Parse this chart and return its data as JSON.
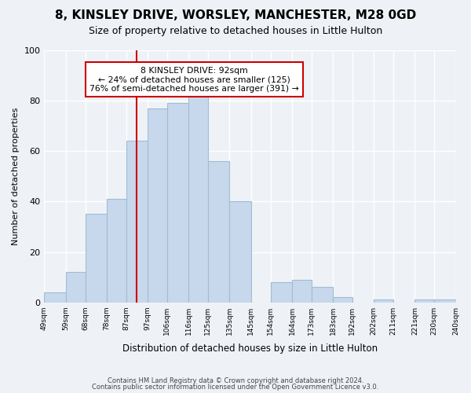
{
  "title": "8, KINSLEY DRIVE, WORSLEY, MANCHESTER, M28 0GD",
  "subtitle": "Size of property relative to detached houses in Little Hulton",
  "xlabel": "Distribution of detached houses by size in Little Hulton",
  "ylabel": "Number of detached properties",
  "bar_color": "#c8d8ec",
  "bar_edge_color": "#a0bcd4",
  "bins": [
    49,
    59,
    68,
    78,
    87,
    97,
    106,
    116,
    125,
    135,
    145,
    154,
    164,
    173,
    183,
    192,
    202,
    211,
    221,
    230,
    240
  ],
  "bin_labels": [
    "49sqm",
    "59sqm",
    "68sqm",
    "78sqm",
    "87sqm",
    "97sqm",
    "106sqm",
    "116sqm",
    "125sqm",
    "135sqm",
    "145sqm",
    "154sqm",
    "164sqm",
    "173sqm",
    "183sqm",
    "192sqm",
    "202sqm",
    "211sqm",
    "221sqm",
    "230sqm",
    "240sqm"
  ],
  "counts": [
    4,
    12,
    35,
    41,
    64,
    77,
    79,
    84,
    56,
    40,
    0,
    8,
    9,
    6,
    2,
    0,
    1,
    0,
    1,
    1
  ],
  "vline_x": 92,
  "vline_color": "#cc0000",
  "annotation_title": "8 KINSLEY DRIVE: 92sqm",
  "annotation_line1": "← 24% of detached houses are smaller (125)",
  "annotation_line2": "76% of semi-detached houses are larger (391) →",
  "annotation_box_color": "#ffffff",
  "annotation_box_edge": "#cc0000",
  "ylim": [
    0,
    100
  ],
  "yticks": [
    0,
    20,
    40,
    60,
    80,
    100
  ],
  "footer1": "Contains HM Land Registry data © Crown copyright and database right 2024.",
  "footer2": "Contains public sector information licensed under the Open Government Licence v3.0.",
  "background_color": "#eef2f7",
  "figsize": [
    6.0,
    5.0
  ],
  "dpi": 100
}
